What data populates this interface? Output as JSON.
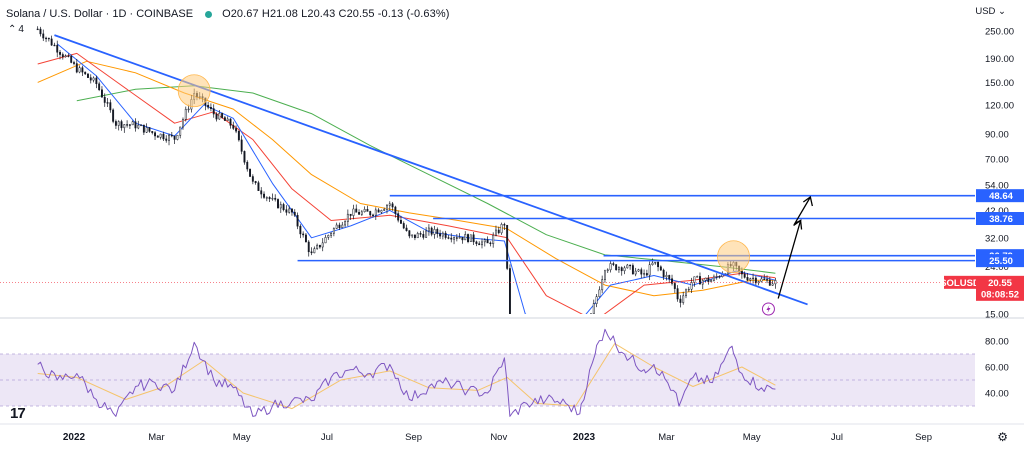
{
  "header": {
    "title": "Solana / U.S. Dollar · 1D · COINBASE",
    "ohlc": "O20.67 H21.08 L20.43 C20.55 -0.13 (-0.63%)",
    "indicator_count": "4"
  },
  "currency": "USD",
  "colors": {
    "trendline": "#2962ff",
    "ma_fast": "#2962ff",
    "ma_red": "#f44336",
    "ma_orange": "#ff9800",
    "ma_green": "#4caf50",
    "rsi_line": "#7e57c2",
    "rsi_signal": "#f5c46b",
    "rsi_band": "#ede7f6",
    "price_tag": "#f23645",
    "level_tag": "#2962ff",
    "circle_fill": "#ffcc80",
    "candle": "#131722"
  },
  "chart_data": [
    {
      "type": "line",
      "title": "",
      "scale": "log",
      "y_ticks": [
        "250.00",
        "190.00",
        "150.00",
        "120.00",
        "90.00",
        "70.00",
        "54.00",
        "42.00",
        "32.00",
        "24.00",
        "19.00",
        "15.00"
      ],
      "x_ticks": [
        "2022",
        "Mar",
        "May",
        "Jul",
        "Sep",
        "Nov",
        "2023",
        "Mar",
        "May",
        "Jul",
        "Sep"
      ],
      "current_price": {
        "symbol": "SOLUSD",
        "value": "20.55",
        "countdown": "08:08:52"
      },
      "levels": [
        {
          "value": "48.64",
          "from": "2022-08-15"
        },
        {
          "value": "38.76",
          "from": "2022-09-15"
        },
        {
          "value": "26.79",
          "from": "2023-01-15"
        },
        {
          "value": "25.50",
          "from": "2022-06-10"
        }
      ],
      "trendline": {
        "from": {
          "x": "2021-12-18",
          "y": 240
        },
        "to": {
          "x": "2023-06-10",
          "y": 16.5
        }
      },
      "projection_arrow": [
        {
          "x": "2023-05-20",
          "y": 17.5
        },
        {
          "x": "2023-06-05",
          "y": 38
        },
        {
          "x": "2023-06-01",
          "y": 37
        },
        {
          "x": "2023-06-12",
          "y": 48
        }
      ],
      "highlight_circles": [
        {
          "x": "2022-03-28",
          "y": 138
        },
        {
          "x": "2023-04-18",
          "y": 26.5
        }
      ],
      "series": [
        {
          "key": "close",
          "points": [
            [
              "2021-12-06",
              255
            ],
            [
              "2021-12-20",
              210
            ],
            [
              "2022-01-03",
              172
            ],
            [
              "2022-01-17",
              148
            ],
            [
              "2022-01-31",
              100
            ],
            [
              "2022-02-14",
              98
            ],
            [
              "2022-02-28",
              90
            ],
            [
              "2022-03-14",
              86
            ],
            [
              "2022-03-28",
              135
            ],
            [
              "2022-04-11",
              110
            ],
            [
              "2022-04-25",
              97
            ],
            [
              "2022-05-09",
              55
            ],
            [
              "2022-05-23",
              46
            ],
            [
              "2022-06-06",
              41
            ],
            [
              "2022-06-20",
              27
            ],
            [
              "2022-07-04",
              34
            ],
            [
              "2022-07-18",
              41
            ],
            [
              "2022-08-01",
              41
            ],
            [
              "2022-08-15",
              45
            ],
            [
              "2022-08-29",
              32
            ],
            [
              "2022-09-12",
              34
            ],
            [
              "2022-09-26",
              33
            ],
            [
              "2022-10-10",
              32
            ],
            [
              "2022-10-24",
              30
            ],
            [
              "2022-11-05",
              37
            ],
            [
              "2022-11-09",
              14
            ],
            [
              "2022-11-21",
              13
            ],
            [
              "2022-12-05",
              13
            ],
            [
              "2022-12-19",
              11.5
            ],
            [
              "2022-12-29",
              9.9
            ],
            [
              "2023-01-09",
              17
            ],
            [
              "2023-01-16",
              24
            ],
            [
              "2023-01-30",
              24
            ],
            [
              "2023-02-13",
              22
            ],
            [
              "2023-02-20",
              25
            ],
            [
              "2023-03-06",
              20
            ],
            [
              "2023-03-10",
              17
            ],
            [
              "2023-03-20",
              21
            ],
            [
              "2023-04-03",
              21
            ],
            [
              "2023-04-17",
              24.5
            ],
            [
              "2023-04-24",
              22
            ],
            [
              "2023-05-08",
              21
            ],
            [
              "2023-05-18",
              20.55
            ]
          ]
        },
        {
          "key": "ma_fast",
          "points": [
            [
              "2021-12-20",
              220
            ],
            [
              "2022-01-17",
              160
            ],
            [
              "2022-02-14",
              100
            ],
            [
              "2022-03-14",
              88
            ],
            [
              "2022-04-04",
              120
            ],
            [
              "2022-04-25",
              105
            ],
            [
              "2022-05-23",
              55
            ],
            [
              "2022-06-20",
              32
            ],
            [
              "2022-07-18",
              36
            ],
            [
              "2022-08-15",
              42
            ],
            [
              "2022-09-12",
              34
            ],
            [
              "2022-10-10",
              32
            ],
            [
              "2022-11-05",
              31
            ],
            [
              "2022-11-20",
              15
            ],
            [
              "2022-12-20",
              12
            ],
            [
              "2023-01-20",
              20
            ],
            [
              "2023-02-20",
              22
            ],
            [
              "2023-03-20",
              20
            ],
            [
              "2023-04-20",
              23
            ],
            [
              "2023-05-18",
              21
            ]
          ]
        },
        {
          "key": "ma_red",
          "points": [
            [
              "2021-12-06",
              180
            ],
            [
              "2022-01-03",
              200
            ],
            [
              "2022-02-01",
              150
            ],
            [
              "2022-03-14",
              100
            ],
            [
              "2022-04-11",
              112
            ],
            [
              "2022-05-09",
              85
            ],
            [
              "2022-06-06",
              52
            ],
            [
              "2022-07-04",
              38
            ],
            [
              "2022-08-15",
              40
            ],
            [
              "2022-09-26",
              36
            ],
            [
              "2022-11-07",
              32
            ],
            [
              "2022-12-05",
              18
            ],
            [
              "2023-01-09",
              14
            ],
            [
              "2023-02-13",
              20
            ],
            [
              "2023-03-20",
              21
            ],
            [
              "2023-04-24",
              22.5
            ],
            [
              "2023-05-18",
              21.5
            ]
          ]
        },
        {
          "key": "ma_orange",
          "points": [
            [
              "2021-12-06",
              150
            ],
            [
              "2022-01-10",
              185
            ],
            [
              "2022-02-14",
              165
            ],
            [
              "2022-03-21",
              135
            ],
            [
              "2022-04-25",
              115
            ],
            [
              "2022-05-23",
              85
            ],
            [
              "2022-06-20",
              60
            ],
            [
              "2022-07-25",
              45
            ],
            [
              "2022-08-29",
              41
            ],
            [
              "2022-10-03",
              38
            ],
            [
              "2022-11-07",
              35
            ],
            [
              "2022-12-12",
              26
            ],
            [
              "2023-01-16",
              20
            ],
            [
              "2023-02-20",
              18
            ],
            [
              "2023-03-27",
              19
            ],
            [
              "2023-05-01",
              21
            ],
            [
              "2023-05-18",
              21
            ]
          ]
        },
        {
          "key": "ma_green",
          "points": [
            [
              "2022-01-03",
              125
            ],
            [
              "2022-02-14",
              140
            ],
            [
              "2022-03-28",
              145
            ],
            [
              "2022-05-09",
              135
            ],
            [
              "2022-06-20",
              110
            ],
            [
              "2022-08-01",
              80
            ],
            [
              "2022-09-12",
              60
            ],
            [
              "2022-10-24",
              45
            ],
            [
              "2022-12-05",
              33
            ],
            [
              "2023-01-16",
              27
            ],
            [
              "2023-02-27",
              25.5
            ],
            [
              "2023-04-10",
              24
            ],
            [
              "2023-05-18",
              22.5
            ]
          ]
        }
      ]
    },
    {
      "type": "line",
      "title": "",
      "y_ticks": [
        "80.00",
        "60.00",
        "40.00"
      ],
      "band": [
        30,
        70
      ],
      "midline": 50,
      "series": [
        {
          "key": "rsi",
          "points": [
            [
              "2021-12-06",
              62
            ],
            [
              "2021-12-20",
              50
            ],
            [
              "2022-01-03",
              55
            ],
            [
              "2022-01-17",
              35
            ],
            [
              "2022-01-31",
              22
            ],
            [
              "2022-02-14",
              45
            ],
            [
              "2022-02-28",
              48
            ],
            [
              "2022-03-14",
              42
            ],
            [
              "2022-03-28",
              79
            ],
            [
              "2022-04-11",
              50
            ],
            [
              "2022-04-25",
              44
            ],
            [
              "2022-05-09",
              22
            ],
            [
              "2022-05-23",
              30
            ],
            [
              "2022-06-06",
              34
            ],
            [
              "2022-06-20",
              34
            ],
            [
              "2022-07-04",
              52
            ],
            [
              "2022-07-18",
              58
            ],
            [
              "2022-08-01",
              55
            ],
            [
              "2022-08-15",
              62
            ],
            [
              "2022-08-29",
              35
            ],
            [
              "2022-09-12",
              45
            ],
            [
              "2022-09-26",
              48
            ],
            [
              "2022-10-10",
              42
            ],
            [
              "2022-10-24",
              40
            ],
            [
              "2022-11-05",
              67
            ],
            [
              "2022-11-09",
              22
            ],
            [
              "2022-11-21",
              32
            ],
            [
              "2022-12-05",
              35
            ],
            [
              "2022-12-19",
              32
            ],
            [
              "2022-12-29",
              24
            ],
            [
              "2023-01-09",
              70
            ],
            [
              "2023-01-16",
              89
            ],
            [
              "2023-01-30",
              70
            ],
            [
              "2023-02-13",
              58
            ],
            [
              "2023-02-20",
              62
            ],
            [
              "2023-03-06",
              42
            ],
            [
              "2023-03-10",
              30
            ],
            [
              "2023-03-20",
              52
            ],
            [
              "2023-04-03",
              48
            ],
            [
              "2023-04-17",
              76
            ],
            [
              "2023-04-24",
              55
            ],
            [
              "2023-05-08",
              44
            ],
            [
              "2023-05-18",
              43
            ]
          ]
        },
        {
          "key": "rsi_signal",
          "points": [
            [
              "2021-12-06",
              55
            ],
            [
              "2022-01-03",
              52
            ],
            [
              "2022-02-07",
              35
            ],
            [
              "2022-03-07",
              45
            ],
            [
              "2022-04-04",
              65
            ],
            [
              "2022-05-02",
              40
            ],
            [
              "2022-06-06",
              28
            ],
            [
              "2022-07-11",
              50
            ],
            [
              "2022-08-15",
              57
            ],
            [
              "2022-09-12",
              44
            ],
            [
              "2022-10-17",
              42
            ],
            [
              "2022-11-07",
              52
            ],
            [
              "2022-11-28",
              32
            ],
            [
              "2022-12-26",
              30
            ],
            [
              "2023-01-23",
              78
            ],
            [
              "2023-02-20",
              60
            ],
            [
              "2023-03-20",
              45
            ],
            [
              "2023-04-24",
              60
            ],
            [
              "2023-05-18",
              46
            ]
          ]
        }
      ]
    }
  ]
}
